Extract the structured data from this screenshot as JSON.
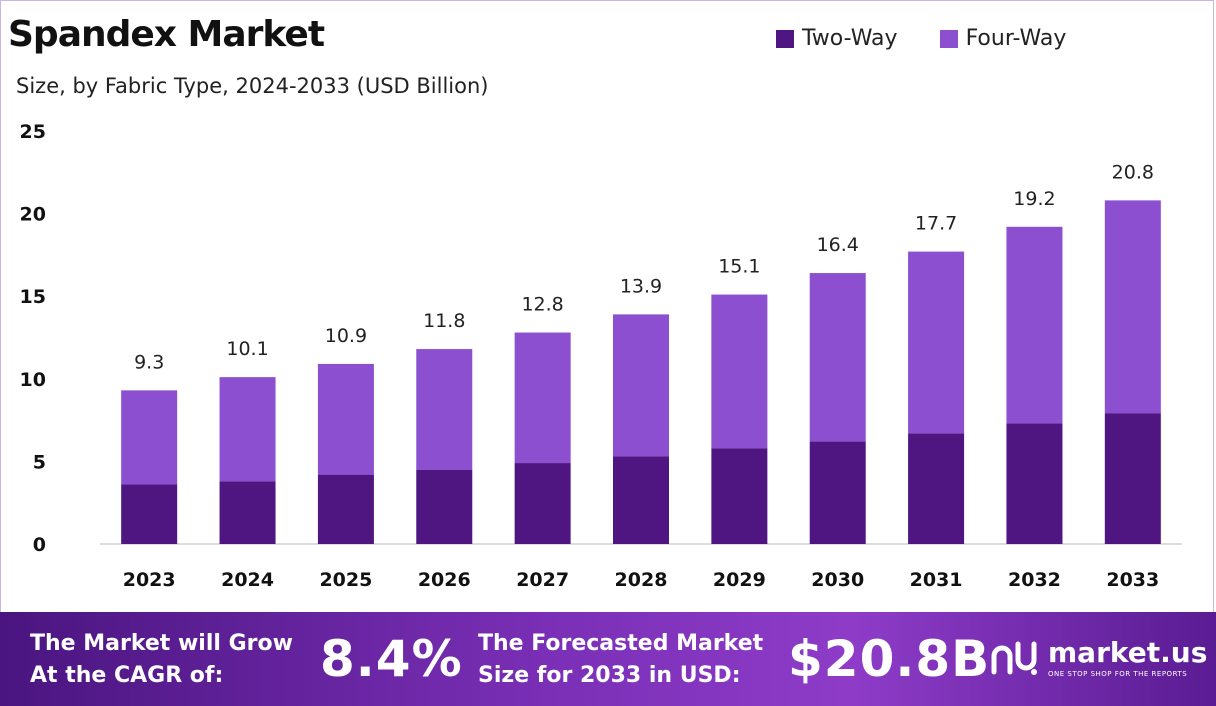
{
  "header": {
    "title": "Spandex Market",
    "subtitle": "Size, by Fabric Type, 2024-2033 (USD Billion)"
  },
  "colors": {
    "two_way": "#4f1580",
    "four_way": "#8b4fd0",
    "footer_start": "#4a1580",
    "footer_end": "#8e3cc8"
  },
  "chart_data": {
    "type": "bar",
    "stacked": true,
    "categories": [
      "2023",
      "2024",
      "2025",
      "2026",
      "2027",
      "2028",
      "2029",
      "2030",
      "2031",
      "2032",
      "2033"
    ],
    "series": [
      {
        "name": "Two-Way",
        "values": [
          3.6,
          3.8,
          4.2,
          4.5,
          4.9,
          5.3,
          5.8,
          6.2,
          6.7,
          7.3,
          7.9
        ]
      },
      {
        "name": "Four-Way",
        "values": [
          5.7,
          6.3,
          6.7,
          7.3,
          7.9,
          8.6,
          9.3,
          10.2,
          11.0,
          11.9,
          12.9
        ]
      }
    ],
    "totals": [
      "9.3",
      "10.1",
      "10.9",
      "11.8",
      "12.8",
      "13.9",
      "15.1",
      "16.4",
      "17.7",
      "19.2",
      "20.8"
    ],
    "yticks": [
      "0",
      "5",
      "10",
      "15",
      "20",
      "25"
    ],
    "ylim": [
      0,
      25
    ],
    "grid": false,
    "legend_position": "top-right"
  },
  "footer": {
    "cagr_label_line1": "The Market will Grow",
    "cagr_label_line2": "At the CAGR of:",
    "cagr_value": "8.4%",
    "forecast_label_line1": "The Forecasted Market",
    "forecast_label_line2": "Size for 2033 in USD:",
    "forecast_value": "$20.8B",
    "brand_name": "market.us",
    "brand_tagline": "ONE STOP SHOP FOR THE REPORTS"
  }
}
